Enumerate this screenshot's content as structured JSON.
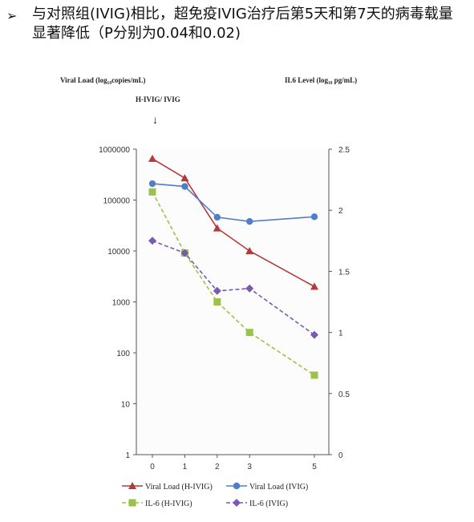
{
  "bullet": {
    "mark": "➢",
    "text": "与对照组(IVIG)相比，超免疫IVIG治疗后第5天和第7天的病毒载量显著降低（P分别为0.04和0.02)"
  },
  "chart_data": {
    "type": "line",
    "left_axis_label": "Viral Load (log₁₀copies/mL)",
    "right_axis_label": "IL6 Level (log₁₀ pg/mL)",
    "annotation": "H-IVIG/ IVIG",
    "annotation_arrow": "↓",
    "x": [
      0,
      1,
      2,
      3,
      5
    ],
    "x_ticks": [
      "0",
      "1",
      "2",
      "3",
      "5"
    ],
    "y_left_scale": "log",
    "y_left_lim": [
      1,
      1000000
    ],
    "y_left_ticks": [
      "1",
      "10",
      "100",
      "1000",
      "10000",
      "100000",
      "1000000"
    ],
    "y_right_lim": [
      0,
      2.5
    ],
    "y_right_ticks": [
      "0",
      "0.5",
      "1",
      "1.5",
      "2",
      "2.5"
    ],
    "series": [
      {
        "name": "Viral Load  (H-IVIG)",
        "axis": "left",
        "color": "#b23a3a",
        "marker": "triangle",
        "dashed": false,
        "values": [
          650000,
          270000,
          28000,
          10000,
          2000
        ]
      },
      {
        "name": "Viral Load (IVIG)",
        "axis": "left",
        "color": "#4f7ec9",
        "marker": "circle",
        "dashed": false,
        "values": [
          210000,
          185000,
          46000,
          38000,
          47000
        ]
      },
      {
        "name": "IL-6 (H-IVIG)",
        "axis": "right",
        "color": "#9bc24a",
        "marker": "square",
        "dashed": true,
        "values": [
          2.15,
          1.65,
          1.25,
          1.0,
          0.65
        ]
      },
      {
        "name": "IL-6 (IVIG)",
        "axis": "right",
        "color": "#7a5ab0",
        "marker": "diamond",
        "dashed": true,
        "values": [
          1.75,
          1.65,
          1.34,
          1.36,
          0.98
        ]
      }
    ]
  }
}
